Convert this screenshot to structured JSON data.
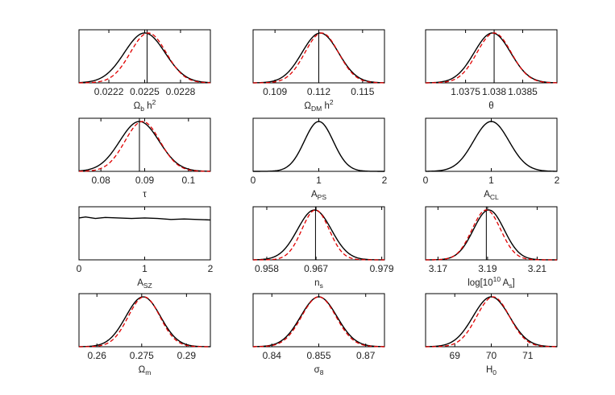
{
  "colors": {
    "solid": "#000000",
    "dashed": "#e00000",
    "frame": "#000000",
    "background": "#ffffff"
  },
  "chart_data": [
    {
      "type": "line",
      "xlabel": {
        "main": "Ω",
        "sub": "b",
        "tail": " h",
        "sup": "2"
      },
      "xlim": [
        0.02195,
        0.02305
      ],
      "ticks": [
        0.0222,
        0.0225,
        0.0228
      ],
      "tick_labels": [
        "0.0222",
        "0.0225",
        "0.0228"
      ],
      "marker": 0.02252,
      "grid": false,
      "series": [
        {
          "style": "solid",
          "mean": 0.0225,
          "sigma": 0.00017
        },
        {
          "style": "dashed",
          "mean": 0.02253,
          "sigma": 0.00015
        }
      ]
    },
    {
      "type": "line",
      "xlabel": {
        "main": "Ω",
        "sub": "DM",
        "tail": " h",
        "sup": "2"
      },
      "xlim": [
        0.1075,
        0.1165
      ],
      "ticks": [
        0.109,
        0.112,
        0.115
      ],
      "tick_labels": [
        "0.109",
        "0.112",
        "0.115"
      ],
      "marker": 0.112,
      "grid": false,
      "series": [
        {
          "style": "solid",
          "mean": 0.1121,
          "sigma": 0.00125
        },
        {
          "style": "dashed",
          "mean": 0.1122,
          "sigma": 0.00115
        }
      ]
    },
    {
      "type": "line",
      "xlabel": {
        "main": "θ"
      },
      "xlim": [
        1.0368,
        1.0391
      ],
      "ticks": [
        1.0375,
        1.038,
        1.0385
      ],
      "tick_labels": [
        "1.0375",
        "1.038",
        "1.0385"
      ],
      "marker": 1.038,
      "grid": false,
      "series": [
        {
          "style": "solid",
          "mean": 1.03797,
          "sigma": 0.00032
        },
        {
          "style": "dashed",
          "mean": 1.038,
          "sigma": 0.0003
        }
      ]
    },
    {
      "type": "line",
      "xlabel": {
        "main": "τ"
      },
      "xlim": [
        0.075,
        0.105
      ],
      "ticks": [
        0.08,
        0.09,
        0.1
      ],
      "tick_labels": [
        "0.08",
        "0.09",
        "0.1"
      ],
      "marker": 0.0888,
      "grid": false,
      "series": [
        {
          "style": "solid",
          "mean": 0.0888,
          "sigma": 0.0045
        },
        {
          "style": "dashed",
          "mean": 0.0895,
          "sigma": 0.004
        }
      ]
    },
    {
      "type": "line",
      "xlabel": {
        "main": "A",
        "sub": "PS"
      },
      "xlim": [
        0,
        2
      ],
      "ticks": [
        0,
        1,
        2
      ],
      "tick_labels": [
        "0",
        "1",
        "2"
      ],
      "marker": null,
      "grid": false,
      "series": [
        {
          "style": "solid",
          "mean": 1.0,
          "sigma": 0.22
        }
      ]
    },
    {
      "type": "line",
      "xlabel": {
        "main": "A",
        "sub": "CL"
      },
      "xlim": [
        0,
        2
      ],
      "ticks": [
        0,
        1,
        2
      ],
      "tick_labels": [
        "0",
        "1",
        "2"
      ],
      "marker": null,
      "grid": false,
      "series": [
        {
          "style": "solid",
          "mean": 1.0,
          "sigma": 0.27
        }
      ]
    },
    {
      "type": "line",
      "xlabel": {
        "main": "A",
        "sub": "SZ"
      },
      "xlim": [
        0,
        2
      ],
      "ticks": [
        0,
        1,
        2
      ],
      "tick_labels": [
        "0",
        "1",
        "2"
      ],
      "marker": null,
      "grid": false,
      "series": [
        {
          "style": "solid",
          "flat": true,
          "x": [
            0,
            0.1,
            0.25,
            0.4,
            0.6,
            0.8,
            1.0,
            1.2,
            1.4,
            1.6,
            1.8,
            2.0
          ],
          "y": [
            0.84,
            0.86,
            0.83,
            0.85,
            0.84,
            0.83,
            0.84,
            0.83,
            0.81,
            0.82,
            0.81,
            0.8
          ]
        }
      ]
    },
    {
      "type": "line",
      "xlabel": {
        "main": "n",
        "sub": "s"
      },
      "xlim": [
        0.9555,
        0.9795
      ],
      "ticks": [
        0.958,
        0.967,
        0.979
      ],
      "tick_labels": [
        "0.958",
        "0.967",
        "0.979"
      ],
      "marker": 0.9669,
      "grid": false,
      "series": [
        {
          "style": "solid",
          "mean": 0.9667,
          "sigma": 0.0031
        },
        {
          "style": "dashed",
          "mean": 0.9669,
          "sigma": 0.0025
        }
      ]
    },
    {
      "type": "line",
      "xlabel": {
        "main": "log[10",
        "sup": "10",
        "tail2": " A",
        "sub": "s",
        "close": "]"
      },
      "xlim": [
        3.165,
        3.218
      ],
      "ticks": [
        3.17,
        3.19,
        3.21
      ],
      "tick_labels": [
        "3.17",
        "3.19",
        "3.21"
      ],
      "marker": 3.1895,
      "grid": false,
      "series": [
        {
          "style": "solid",
          "mean": 3.1905,
          "sigma": 0.0062
        },
        {
          "style": "dashed",
          "mean": 3.1895,
          "sigma": 0.0058
        }
      ]
    },
    {
      "type": "line",
      "xlabel": {
        "main": "Ω",
        "sub": "m"
      },
      "xlim": [
        0.254,
        0.298
      ],
      "ticks": [
        0.26,
        0.275,
        0.29
      ],
      "tick_labels": [
        "0.26",
        "0.275",
        "0.29"
      ],
      "marker": null,
      "grid": false,
      "series": [
        {
          "style": "solid",
          "mean": 0.2755,
          "sigma": 0.0058
        },
        {
          "style": "dashed",
          "mean": 0.2758,
          "sigma": 0.0053
        }
      ]
    },
    {
      "type": "line",
      "xlabel": {
        "main": "σ",
        "sub": "8"
      },
      "xlim": [
        0.834,
        0.876
      ],
      "ticks": [
        0.84,
        0.855,
        0.87
      ],
      "tick_labels": [
        "0.84",
        "0.855",
        "0.87"
      ],
      "marker": null,
      "grid": false,
      "series": [
        {
          "style": "solid",
          "mean": 0.855,
          "sigma": 0.0058
        },
        {
          "style": "dashed",
          "mean": 0.855,
          "sigma": 0.0055
        }
      ]
    },
    {
      "type": "line",
      "xlabel": {
        "main": "H",
        "sub": "0"
      },
      "xlim": [
        68.2,
        71.8
      ],
      "ticks": [
        69,
        70,
        71
      ],
      "tick_labels": [
        "69",
        "70",
        "71"
      ],
      "marker": null,
      "grid": false,
      "series": [
        {
          "style": "solid",
          "mean": 70.0,
          "sigma": 0.5
        },
        {
          "style": "dashed",
          "mean": 70.05,
          "sigma": 0.45
        }
      ]
    }
  ]
}
